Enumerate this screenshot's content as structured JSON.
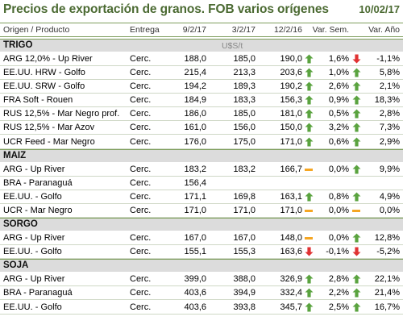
{
  "title": "Precios de exportación de granos. FOB varios orígenes",
  "date": "10/02/17",
  "headers": {
    "product": "Origen / Producto",
    "entrega": "Entrega",
    "d1": "9/2/17",
    "d2": "3/2/17",
    "d3": "12/2/16",
    "var_sem": "Var. Sem.",
    "var_anio": "Var. Año"
  },
  "colors": {
    "up": "#5aa33f",
    "down": "#e03232",
    "flat": "#f5a623",
    "title": "#4b6a32"
  },
  "sections": [
    {
      "label": "TRIGO",
      "unit": "U$S/t",
      "rows": [
        {
          "name": "ARG 12,0% - Up River",
          "entrega": "Cerc.",
          "d1": "188,0",
          "d2": "185,0",
          "d3": "190,0",
          "icon1": "up",
          "var_sem": "1,6%",
          "icon2": "down",
          "var_anio": "-1,1%"
        },
        {
          "name": "EE.UU. HRW - Golfo",
          "entrega": "Cerc.",
          "d1": "215,4",
          "d2": "213,3",
          "d3": "203,6",
          "icon1": "up",
          "var_sem": "1,0%",
          "icon2": "up",
          "var_anio": "5,8%"
        },
        {
          "name": "EE.UU. SRW - Golfo",
          "entrega": "Cerc.",
          "d1": "194,2",
          "d2": "189,3",
          "d3": "190,2",
          "icon1": "up",
          "var_sem": "2,6%",
          "icon2": "up",
          "var_anio": "2,1%"
        },
        {
          "name": "FRA Soft - Rouen",
          "entrega": "Cerc.",
          "d1": "184,9",
          "d2": "183,3",
          "d3": "156,3",
          "icon1": "up",
          "var_sem": "0,9%",
          "icon2": "up",
          "var_anio": "18,3%"
        },
        {
          "name": "RUS 12,5% - Mar Negro prof.",
          "entrega": "Cerc.",
          "d1": "186,0",
          "d2": "185,0",
          "d3": "181,0",
          "icon1": "up",
          "var_sem": "0,5%",
          "icon2": "up",
          "var_anio": "2,8%"
        },
        {
          "name": "RUS 12,5% - Mar Azov",
          "entrega": "Cerc.",
          "d1": "161,0",
          "d2": "156,0",
          "d3": "150,0",
          "icon1": "up",
          "var_sem": "3,2%",
          "icon2": "up",
          "var_anio": "7,3%"
        },
        {
          "name": "UCR Feed - Mar Negro",
          "entrega": "Cerc.",
          "d1": "176,0",
          "d2": "175,0",
          "d3": "171,0",
          "icon1": "up",
          "var_sem": "0,6%",
          "icon2": "up",
          "var_anio": "2,9%"
        }
      ]
    },
    {
      "label": "MAIZ",
      "unit": "",
      "rows": [
        {
          "name": "ARG - Up River",
          "entrega": "Cerc.",
          "d1": "183,2",
          "d2": "183,2",
          "d3": "166,7",
          "icon1": "flat",
          "var_sem": "0,0%",
          "icon2": "up",
          "var_anio": "9,9%"
        },
        {
          "name": "BRA - Paranaguá",
          "entrega": "Cerc.",
          "d1": "156,4",
          "d2": "",
          "d3": "",
          "icon1": "",
          "var_sem": "",
          "icon2": "",
          "var_anio": ""
        },
        {
          "name": "EE.UU. - Golfo",
          "entrega": "Cerc.",
          "d1": "171,1",
          "d2": "169,8",
          "d3": "163,1",
          "icon1": "up",
          "var_sem": "0,8%",
          "icon2": "up",
          "var_anio": "4,9%"
        },
        {
          "name": "UCR - Mar Negro",
          "entrega": "Cerc.",
          "d1": "171,0",
          "d2": "171,0",
          "d3": "171,0",
          "icon1": "flat",
          "var_sem": "0,0%",
          "icon2": "flat",
          "var_anio": "0,0%"
        }
      ]
    },
    {
      "label": "SORGO",
      "unit": "",
      "rows": [
        {
          "name": "ARG - Up River",
          "entrega": "Cerc.",
          "d1": "167,0",
          "d2": "167,0",
          "d3": "148,0",
          "icon1": "flat",
          "var_sem": "0,0%",
          "icon2": "up",
          "var_anio": "12,8%"
        },
        {
          "name": "EE.UU. - Golfo",
          "entrega": "Cerc.",
          "d1": "155,1",
          "d2": "155,3",
          "d3": "163,6",
          "icon1": "down",
          "var_sem": "-0,1%",
          "icon2": "down",
          "var_anio": "-5,2%"
        }
      ]
    },
    {
      "label": "SOJA",
      "unit": "",
      "rows": [
        {
          "name": "ARG - Up River",
          "entrega": "Cerc.",
          "d1": "399,0",
          "d2": "388,0",
          "d3": "326,9",
          "icon1": "up",
          "var_sem": "2,8%",
          "icon2": "up",
          "var_anio": "22,1%"
        },
        {
          "name": "BRA - Paranaguá",
          "entrega": "Cerc.",
          "d1": "403,6",
          "d2": "394,9",
          "d3": "332,4",
          "icon1": "up",
          "var_sem": "2,2%",
          "icon2": "up",
          "var_anio": "21,4%"
        },
        {
          "name": "EE.UU. - Golfo",
          "entrega": "Cerc.",
          "d1": "403,6",
          "d2": "393,8",
          "d3": "345,7",
          "icon1": "up",
          "var_sem": "2,5%",
          "icon2": "up",
          "var_anio": "16,7%"
        }
      ]
    }
  ]
}
